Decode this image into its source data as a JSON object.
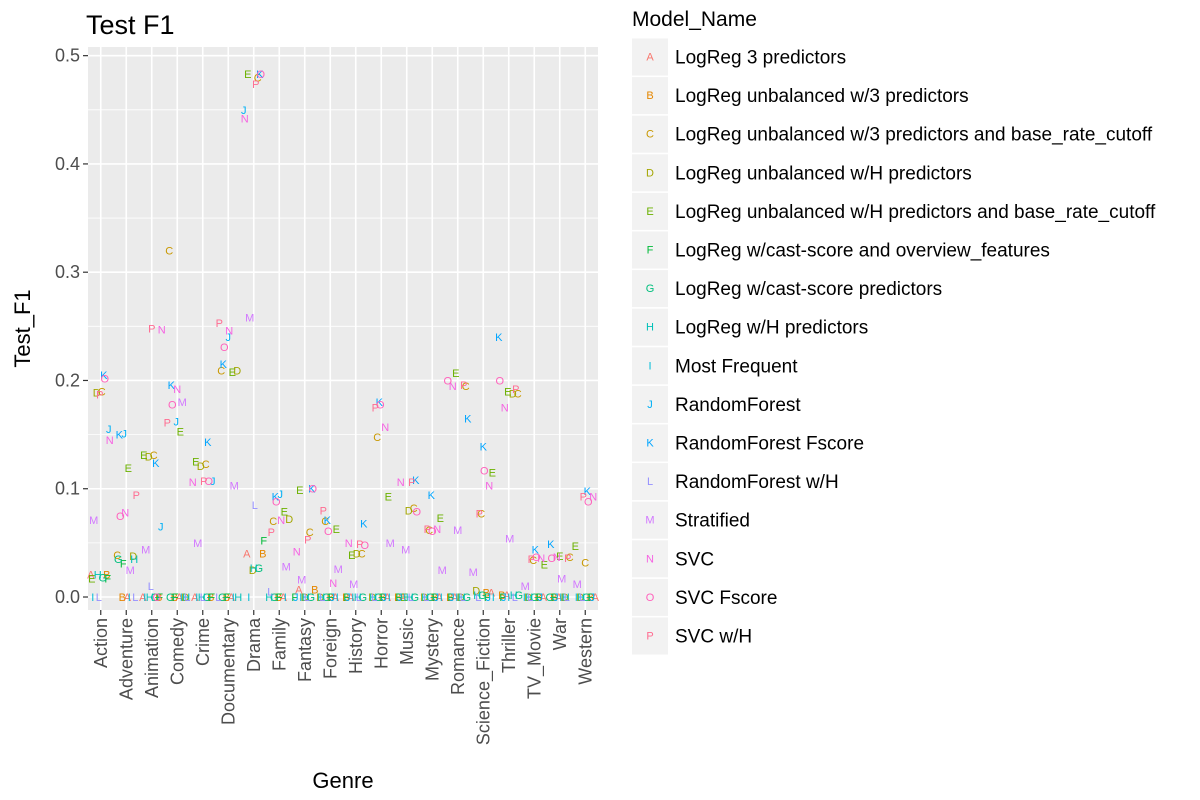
{
  "chart_data": {
    "type": "scatter",
    "title": "Test F1",
    "xlabel": "Genre",
    "ylabel": "Test_F1",
    "ylim": [
      -0.012,
      0.508
    ],
    "y_ticks": [
      "0.0",
      "0.1",
      "0.2",
      "0.3",
      "0.4",
      "0.5"
    ],
    "y_tick_values": [
      0,
      0.1,
      0.2,
      0.3,
      0.4,
      0.5
    ],
    "grid": true,
    "legend_position": "right",
    "legend_title": "Model_Name",
    "categories": [
      "Action",
      "Adventure",
      "Animation",
      "Comedy",
      "Crime",
      "Documentary",
      "Drama",
      "Family",
      "Fantasy",
      "Foreign",
      "History",
      "Horror",
      "Music",
      "Mystery",
      "Romance",
      "Science_Fiction",
      "Thriller",
      "TV_Movie",
      "War",
      "Western"
    ],
    "series": [
      {
        "name": "LogReg 3 predictors",
        "letter": "A",
        "color": "#F8766D",
        "values": [
          0.021,
          0.0,
          0.0,
          0.0,
          0.0,
          0.0,
          0.04,
          0.0,
          0.007,
          0.0,
          0.0,
          0.0,
          0.0,
          0.0,
          0.0,
          0.004,
          0.002,
          0.0,
          0.0,
          0.0
        ]
      },
      {
        "name": "LogReg unbalanced w/3 predictors",
        "letter": "B",
        "color": "#E58700",
        "values": [
          0.021,
          0.0,
          0.0,
          0.0,
          0.0,
          0.0,
          0.04,
          0.0,
          0.007,
          0.0,
          0.0,
          0.0,
          0.0,
          0.0,
          0.0,
          0.004,
          0.002,
          0.0,
          0.0,
          0.0
        ]
      },
      {
        "name": "LogReg unbalanced w/3 predictors and base_rate_cutoff",
        "letter": "C",
        "color": "#C99800",
        "values": [
          0.19,
          0.039,
          0.131,
          0.32,
          0.123,
          0.209,
          0.48,
          0.07,
          0.06,
          0.07,
          0.04,
          0.148,
          0.082,
          0.062,
          0.195,
          0.077,
          0.188,
          0.034,
          0.037,
          0.032
        ]
      },
      {
        "name": "LogReg unbalanced w/H predictors",
        "letter": "D",
        "color": "#A3A500",
        "values": [
          0.189,
          0.038,
          0.13,
          0.0,
          0.121,
          0.209,
          0.025,
          0.072,
          0.0,
          0.0,
          0.04,
          0.0,
          0.08,
          0.0,
          0.0,
          0.006,
          0.188,
          0.0,
          0.0,
          0.0
        ]
      },
      {
        "name": "LogReg unbalanced w/H predictors and base_rate_cutoff",
        "letter": "E",
        "color": "#6BB100",
        "values": [
          0.017,
          0.119,
          0.131,
          0.153,
          0.125,
          0.208,
          0.483,
          0.079,
          0.099,
          0.063,
          0.039,
          0.093,
          0.0,
          0.073,
          0.207,
          0.115,
          0.19,
          0.03,
          0.038,
          0.047
        ]
      },
      {
        "name": "LogReg w/cast-score and overview_features",
        "letter": "F",
        "color": "#00BA38",
        "values": [
          0.017,
          0.031,
          0.0,
          0.0,
          0.0,
          0.0,
          0.052,
          0.0,
          0.0,
          0.0,
          0.0,
          0.0,
          0.0,
          0.0,
          0.0,
          0.0,
          0.0,
          0.0,
          0.0,
          0.0
        ]
      },
      {
        "name": "LogReg w/cast-score predictors",
        "letter": "G",
        "color": "#00BF7D",
        "values": [
          0.018,
          0.035,
          0.0,
          0.0,
          0.0,
          0.0,
          0.027,
          0.0,
          0.0,
          0.0,
          0.0,
          0.0,
          0.0,
          0.0,
          0.0,
          0.002,
          0.002,
          0.0,
          0.0,
          0.0
        ]
      },
      {
        "name": "LogReg w/H predictors",
        "letter": "H",
        "color": "#00C0B8",
        "values": [
          0.021,
          0.035,
          0.0,
          0.0,
          0.0,
          0.0,
          0.027,
          0.0,
          0.0,
          0.0,
          0.0,
          0.0,
          0.0,
          0.0,
          0.0,
          0.002,
          0.002,
          0.0,
          0.0,
          0.0
        ]
      },
      {
        "name": "Most Frequent",
        "letter": "I",
        "color": "#00BCD8",
        "values": [
          0.0,
          0.0,
          0.0,
          0.0,
          0.0,
          0.0,
          0.0,
          0.0,
          0.0,
          0.0,
          0.0,
          0.0,
          0.0,
          0.0,
          0.0,
          0.0,
          0.0,
          0.0,
          0.0,
          0.0
        ]
      },
      {
        "name": "RandomForest",
        "letter": "J",
        "color": "#00B0F6",
        "values": [
          0.155,
          0.151,
          0.065,
          0.162,
          0.107,
          0.24,
          0.45,
          0.095,
          0.0,
          0.0,
          0.0,
          0.0,
          0.0,
          0.0,
          0.0,
          0.0,
          0.0,
          0.0,
          0.0,
          0.0
        ]
      },
      {
        "name": "RandomForest Fscore",
        "letter": "K",
        "color": "#00A5FF",
        "values": [
          0.205,
          0.15,
          0.124,
          0.196,
          0.143,
          0.215,
          0.483,
          0.093,
          0.1,
          0.071,
          0.068,
          0.18,
          0.108,
          0.094,
          0.165,
          0.139,
          0.24,
          0.044,
          0.049,
          0.098
        ]
      },
      {
        "name": "RandomForest w/H",
        "letter": "L",
        "color": "#9590FF",
        "values": [
          0.0,
          0.0,
          0.01,
          0.0,
          0.0,
          0.0,
          0.085,
          0.005,
          0.0,
          0.0,
          0.0,
          0.0,
          0.0,
          0.0,
          0.0,
          0.0,
          0.0,
          0.0,
          0.0,
          0.0
        ]
      },
      {
        "name": "Stratified",
        "letter": "M",
        "color": "#D277FF",
        "values": [
          0.071,
          0.025,
          0.044,
          0.18,
          0.05,
          0.103,
          0.258,
          0.028,
          0.016,
          0.026,
          0.012,
          0.05,
          0.044,
          0.025,
          0.062,
          0.023,
          0.054,
          0.01,
          0.017,
          0.012
        ]
      },
      {
        "name": "SVC",
        "letter": "N",
        "color": "#F663E2",
        "values": [
          0.145,
          0.078,
          0.247,
          0.192,
          0.106,
          0.246,
          0.442,
          0.071,
          0.042,
          0.013,
          0.05,
          0.157,
          0.106,
          0.063,
          0.195,
          0.103,
          0.175,
          0.036,
          0.037,
          0.093
        ]
      },
      {
        "name": "SVC Fscore",
        "letter": "O",
        "color": "#FF62BC",
        "values": [
          0.202,
          0.075,
          0.0,
          0.178,
          0.107,
          0.231,
          0.483,
          0.088,
          0.1,
          0.061,
          0.048,
          0.178,
          0.079,
          0.061,
          0.2,
          0.117,
          0.2,
          0.037,
          0.036,
          0.088
        ]
      },
      {
        "name": "SVC w/H",
        "letter": "P",
        "color": "#FF6C91",
        "values": [
          0.187,
          0.094,
          0.248,
          0.161,
          0.107,
          0.253,
          0.474,
          0.06,
          0.053,
          0.08,
          0.049,
          0.175,
          0.106,
          0.063,
          0.196,
          0.077,
          0.192,
          0.035,
          0.036,
          0.093
        ]
      }
    ]
  }
}
